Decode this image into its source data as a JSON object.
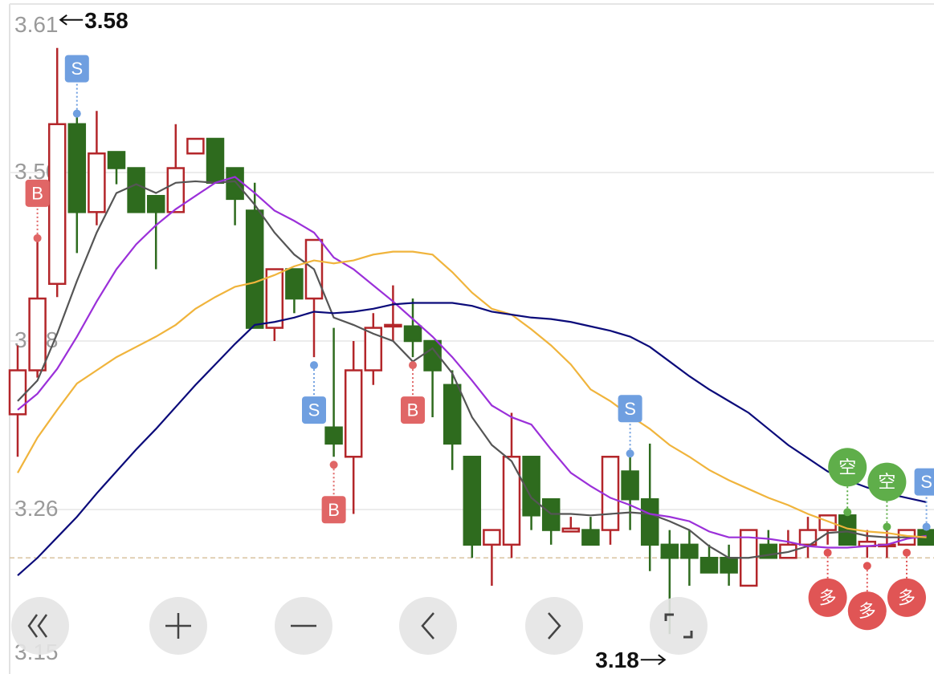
{
  "chart_data": {
    "type": "candlestick",
    "ylim": [
      3.15,
      3.61
    ],
    "yticks": [
      3.61,
      {
        "value": 3.495,
        "label": "3.50"
      },
      3.38,
      {
        "value": 3.265,
        "label": "3.26"
      },
      3.15
    ],
    "grid": true,
    "up_color": "#b3262a",
    "down_color": "#2e6b1e",
    "open": [
      3.33,
      3.36,
      3.419,
      3.528,
      3.468,
      3.509,
      3.498,
      3.479,
      3.468,
      3.508,
      3.518,
      3.498,
      3.469,
      3.389,
      3.429,
      3.409,
      3.321,
      3.301,
      3.36,
      3.39,
      3.39,
      3.38,
      3.35,
      3.301,
      3.241,
      3.241,
      3.301,
      3.272,
      3.25,
      3.251,
      3.251,
      3.291,
      3.272,
      3.241,
      3.241,
      3.232,
      3.232,
      3.213,
      3.241,
      3.232,
      3.241,
      3.251,
      3.261,
      3.24,
      3.24,
      3.241,
      3.251
    ],
    "high": [
      3.377,
      3.448,
      3.58,
      3.533,
      3.537,
      3.509,
      3.498,
      3.479,
      3.528,
      3.518,
      3.518,
      3.498,
      3.488,
      3.429,
      3.429,
      3.449,
      3.389,
      3.38,
      3.399,
      3.418,
      3.409,
      3.38,
      3.36,
      3.301,
      3.251,
      3.331,
      3.301,
      3.272,
      3.26,
      3.26,
      3.301,
      3.301,
      3.31,
      3.251,
      3.251,
      3.241,
      3.241,
      3.251,
      3.251,
      3.251,
      3.26,
      3.261,
      3.261,
      3.251,
      3.251,
      3.251,
      3.251
    ],
    "low": [
      3.301,
      3.355,
      3.41,
      3.44,
      3.459,
      3.487,
      3.468,
      3.429,
      3.468,
      3.508,
      3.488,
      3.459,
      3.389,
      3.38,
      3.399,
      3.369,
      3.301,
      3.262,
      3.35,
      3.38,
      3.369,
      3.328,
      3.292,
      3.232,
      3.213,
      3.232,
      3.251,
      3.241,
      3.25,
      3.241,
      3.241,
      3.251,
      3.223,
      3.18,
      3.213,
      3.222,
      3.213,
      3.213,
      3.232,
      3.232,
      3.232,
      3.241,
      3.241,
      3.232,
      3.232,
      3.241,
      3.241
    ],
    "close": [
      3.36,
      3.409,
      3.528,
      3.468,
      3.508,
      3.498,
      3.468,
      3.468,
      3.498,
      3.518,
      3.488,
      3.477,
      3.389,
      3.429,
      3.409,
      3.449,
      3.31,
      3.36,
      3.389,
      3.391,
      3.38,
      3.36,
      3.31,
      3.241,
      3.251,
      3.301,
      3.261,
      3.251,
      3.252,
      3.241,
      3.301,
      3.272,
      3.241,
      3.232,
      3.232,
      3.222,
      3.222,
      3.251,
      3.232,
      3.241,
      3.251,
      3.261,
      3.241,
      3.243,
      3.241,
      3.251,
      3.241
    ],
    "series": [
      {
        "color": "#555555",
        "values": [
          3.339,
          3.353,
          3.385,
          3.421,
          3.454,
          3.481,
          3.487,
          3.481,
          3.488,
          3.489,
          3.488,
          3.489,
          3.473,
          3.454,
          3.439,
          3.429,
          3.396,
          3.391,
          3.385,
          3.38,
          3.366,
          3.375,
          3.358,
          3.328,
          3.309,
          3.298,
          3.273,
          3.262,
          3.262,
          3.261,
          3.262,
          3.263,
          3.262,
          3.257,
          3.251,
          3.24,
          3.232,
          3.232,
          3.234,
          3.236,
          3.24,
          3.249,
          3.25,
          3.247,
          3.246,
          3.246,
          3.246
        ]
      },
      {
        "color": "#9b30d9",
        "values": [
          3.333,
          3.344,
          3.361,
          3.383,
          3.407,
          3.429,
          3.446,
          3.459,
          3.47,
          3.479,
          3.488,
          3.492,
          3.481,
          3.469,
          3.462,
          3.454,
          3.437,
          3.429,
          3.418,
          3.407,
          3.395,
          3.383,
          3.369,
          3.353,
          3.336,
          3.328,
          3.323,
          3.306,
          3.29,
          3.281,
          3.273,
          3.268,
          3.262,
          3.26,
          3.257,
          3.25,
          3.246,
          3.246,
          3.245,
          3.243,
          3.24,
          3.239,
          3.239,
          3.24,
          3.241,
          3.245,
          3.247
        ]
      },
      {
        "color": "#f0b43c",
        "values": [
          3.29,
          3.314,
          3.333,
          3.351,
          3.36,
          3.369,
          3.376,
          3.383,
          3.391,
          3.402,
          3.41,
          3.417,
          3.42,
          3.425,
          3.431,
          3.435,
          3.433,
          3.435,
          3.439,
          3.441,
          3.441,
          3.439,
          3.427,
          3.413,
          3.402,
          3.398,
          3.388,
          3.377,
          3.364,
          3.347,
          3.339,
          3.329,
          3.32,
          3.309,
          3.301,
          3.292,
          3.285,
          3.279,
          3.273,
          3.268,
          3.262,
          3.257,
          3.252,
          3.25,
          3.249,
          3.247,
          3.246
        ]
      },
      {
        "color": "#0b0b7a",
        "values": [
          3.22,
          3.232,
          3.246,
          3.26,
          3.276,
          3.291,
          3.306,
          3.32,
          3.335,
          3.35,
          3.364,
          3.378,
          3.391,
          3.393,
          3.396,
          3.4,
          3.399,
          3.4,
          3.402,
          3.405,
          3.406,
          3.406,
          3.406,
          3.404,
          3.4,
          3.398,
          3.396,
          3.395,
          3.393,
          3.39,
          3.387,
          3.383,
          3.376,
          3.366,
          3.356,
          3.347,
          3.339,
          3.331,
          3.32,
          3.309,
          3.3,
          3.291,
          3.285,
          3.28,
          3.276,
          3.273,
          3.27
        ]
      }
    ],
    "reference_line": 3.232,
    "high_marker": 3.58,
    "low_marker": 3.18,
    "signals_above": [
      null,
      {
        "label": "B",
        "color": "#e06666",
        "shape": "box"
      },
      null,
      {
        "label": "S",
        "color": "#6f9fe0",
        "shape": "box"
      },
      null,
      null,
      null,
      null,
      null,
      null,
      null,
      null,
      null,
      null,
      null,
      null,
      null,
      null,
      null,
      null,
      null,
      null,
      null,
      null,
      null,
      null,
      null,
      null,
      null,
      null,
      null,
      {
        "label": "S",
        "color": "#6f9fe0",
        "shape": "box"
      },
      null,
      null,
      null,
      null,
      null,
      null,
      null,
      null,
      null,
      null,
      {
        "label": "空",
        "color": "#5fae4a",
        "shape": "circle"
      },
      null,
      {
        "label": "空",
        "color": "#5fae4a",
        "shape": "circle"
      },
      null,
      {
        "label": "S",
        "color": "#6f9fe0",
        "shape": "box"
      }
    ],
    "signals_below": [
      null,
      null,
      null,
      null,
      null,
      null,
      null,
      null,
      null,
      null,
      null,
      null,
      null,
      null,
      null,
      {
        "label": "S",
        "color": "#6f9fe0",
        "shape": "box"
      },
      {
        "label": "B",
        "color": "#e06666",
        "shape": "box"
      },
      null,
      null,
      null,
      {
        "label": "B",
        "color": "#e06666",
        "shape": "box"
      },
      null,
      null,
      null,
      null,
      null,
      null,
      null,
      null,
      null,
      null,
      null,
      null,
      null,
      null,
      null,
      null,
      null,
      null,
      null,
      null,
      {
        "label": "多",
        "color": "#e05555",
        "shape": "circle"
      },
      null,
      {
        "label": "多",
        "color": "#e05555",
        "shape": "circle"
      },
      null,
      {
        "label": "多",
        "color": "#e05555",
        "shape": "circle"
      },
      null
    ]
  }
}
